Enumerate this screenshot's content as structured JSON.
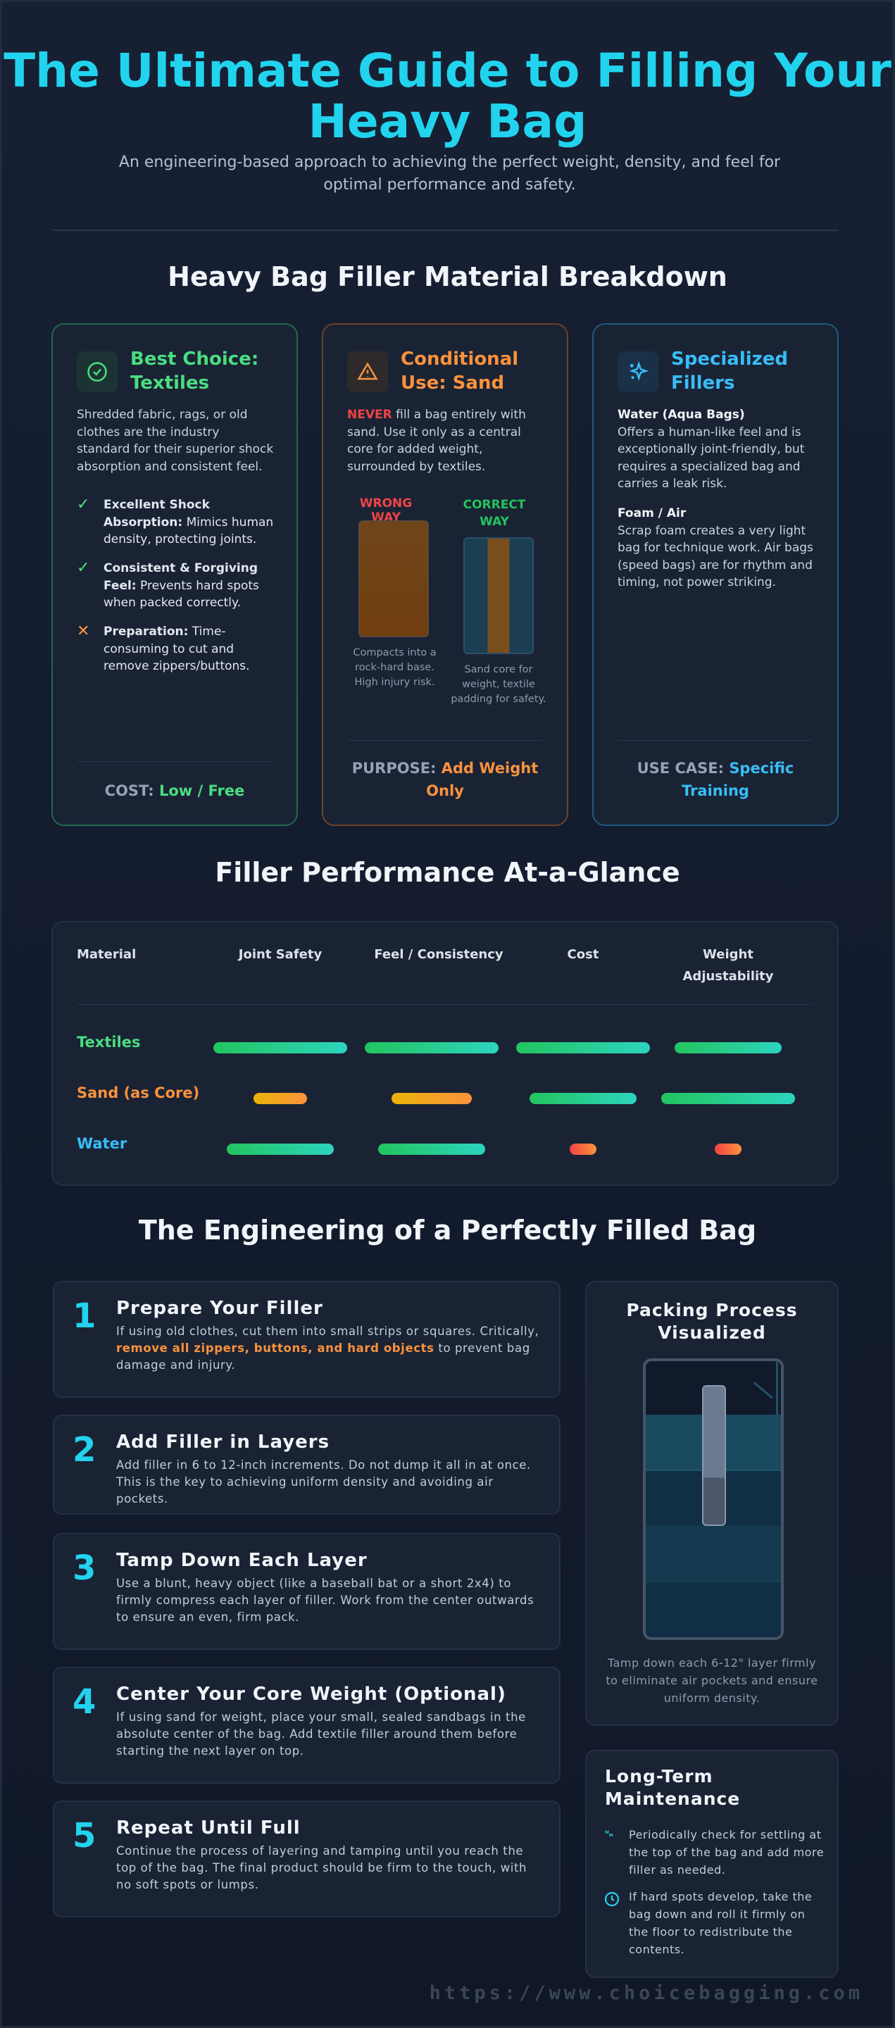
{
  "header": {
    "title": "The Ultimate Guide to Filling Your Heavy Bag",
    "subtitle": "An engineering-based approach to achieving the perfect weight, density, and feel for optimal performance and safety."
  },
  "breakdown": {
    "heading": "Heavy Bag Filler Material Breakdown",
    "cards": [
      {
        "title": "Best Choice: Textiles",
        "icon": "check-circle-icon",
        "color": "#4ade80",
        "description": "Shredded fabric, rags, or old clothes are the industry standard for their superior shock absorption and consistent feel.",
        "points": [
          {
            "icon": "check-icon",
            "label": "Excellent Shock Absorption:",
            "text": " Mimics human density, protecting joints."
          },
          {
            "icon": "check-icon",
            "label": "Consistent & Forgiving Feel:",
            "text": " Prevents hard spots when packed correctly."
          },
          {
            "icon": "x-icon",
            "label": "Preparation:",
            "text": " Time-consuming to cut and remove zippers/buttons."
          }
        ],
        "footer_label": "COST:",
        "footer_value": "Low / Free"
      },
      {
        "title": "Conditional Use: Sand",
        "icon": "warning-triangle-icon",
        "color": "#fb923c",
        "never": "NEVER",
        "description": " fill a bag entirely with sand. Use it only as a central core for added weight, surrounded by textiles.",
        "wrong_label": "WRONG WAY",
        "wrong_caption": "Compacts into a rock-hard base. High injury risk.",
        "correct_label": "CORRECT WAY",
        "correct_caption": "Sand core for weight, textile padding for safety.",
        "footer_label": "PURPOSE:",
        "footer_value": "Add Weight Only"
      },
      {
        "title": "Specialized Fillers",
        "icon": "sparkles-icon",
        "color": "#38bdf8",
        "items": [
          {
            "name": "Water (Aqua Bags)",
            "text": "Offers a human-like feel and is exceptionally joint-friendly, but requires a specialized bag and carries a leak risk."
          },
          {
            "name": "Foam / Air",
            "text": "Scrap foam creates a very light bag for technique work. Air bags (speed bags) are for rhythm and timing, not power striking."
          }
        ],
        "footer_label": "USE CASE:",
        "footer_value": "Specific Training"
      }
    ]
  },
  "performance": {
    "heading": "Filler Performance At-a-Glance",
    "columns": [
      "Material",
      "Joint Safety",
      "Feel / Consistency",
      "Cost",
      "Weight Adjustability"
    ],
    "rows": [
      {
        "material": "Textiles",
        "color": "#4ade80",
        "levels": [
          5,
          5,
          5,
          4
        ]
      },
      {
        "material": "Sand (as Core)",
        "color": "#fb923c",
        "levels": [
          2,
          3,
          4,
          5
        ]
      },
      {
        "material": "Water",
        "color": "#38bdf8",
        "levels": [
          4,
          4,
          1,
          1
        ]
      }
    ],
    "scale_max": 5
  },
  "engineering": {
    "heading": "The Engineering of a Perfectly Filled Bag",
    "steps": [
      {
        "num": "1",
        "title": "Prepare Your Filler",
        "pre": "If using old clothes, cut them into small strips or squares. Critically, ",
        "highlight": "remove all zippers, buttons, and hard objects",
        "post": " to prevent bag damage and injury."
      },
      {
        "num": "2",
        "title": "Add Filler in Layers",
        "pre": "Add filler in 6 to 12-inch increments. Do not dump it all in at once. This is the key to achieving uniform density and avoiding air pockets."
      },
      {
        "num": "3",
        "title": "Tamp Down Each Layer",
        "pre": "Use a blunt, heavy object (like a baseball bat or a short 2x4) to firmly compress each layer of filler. Work from the center outwards to ensure an even, firm pack."
      },
      {
        "num": "4",
        "title": "Center Your Core Weight (Optional)",
        "pre": "If using sand for weight, place your small, sealed sandbags in the absolute center of the bag. Add textile filler around them before starting the next layer on top."
      },
      {
        "num": "5",
        "title": "Repeat Until Full",
        "pre": "Continue the process of layering and tamping until you reach the top of the bag. The final product should be firm to the touch, with no soft spots or lumps."
      }
    ],
    "packing": {
      "title": "Packing Process Visualized",
      "caption": "Tamp down each 6-12\" layer firmly to eliminate air pockets and ensure uniform density."
    },
    "maintenance": {
      "title": "Long-Term Maintenance",
      "items": [
        {
          "icon": "settle-arrows-icon",
          "text": "Periodically check for settling at the top of the bag and add more filler as needed."
        },
        {
          "icon": "clock-icon",
          "text": "If hard spots develop, take the bag down and roll it firmly on the floor to redistribute the contents."
        }
      ]
    }
  },
  "footer": {
    "url": "https://www.choicebagging.com"
  }
}
